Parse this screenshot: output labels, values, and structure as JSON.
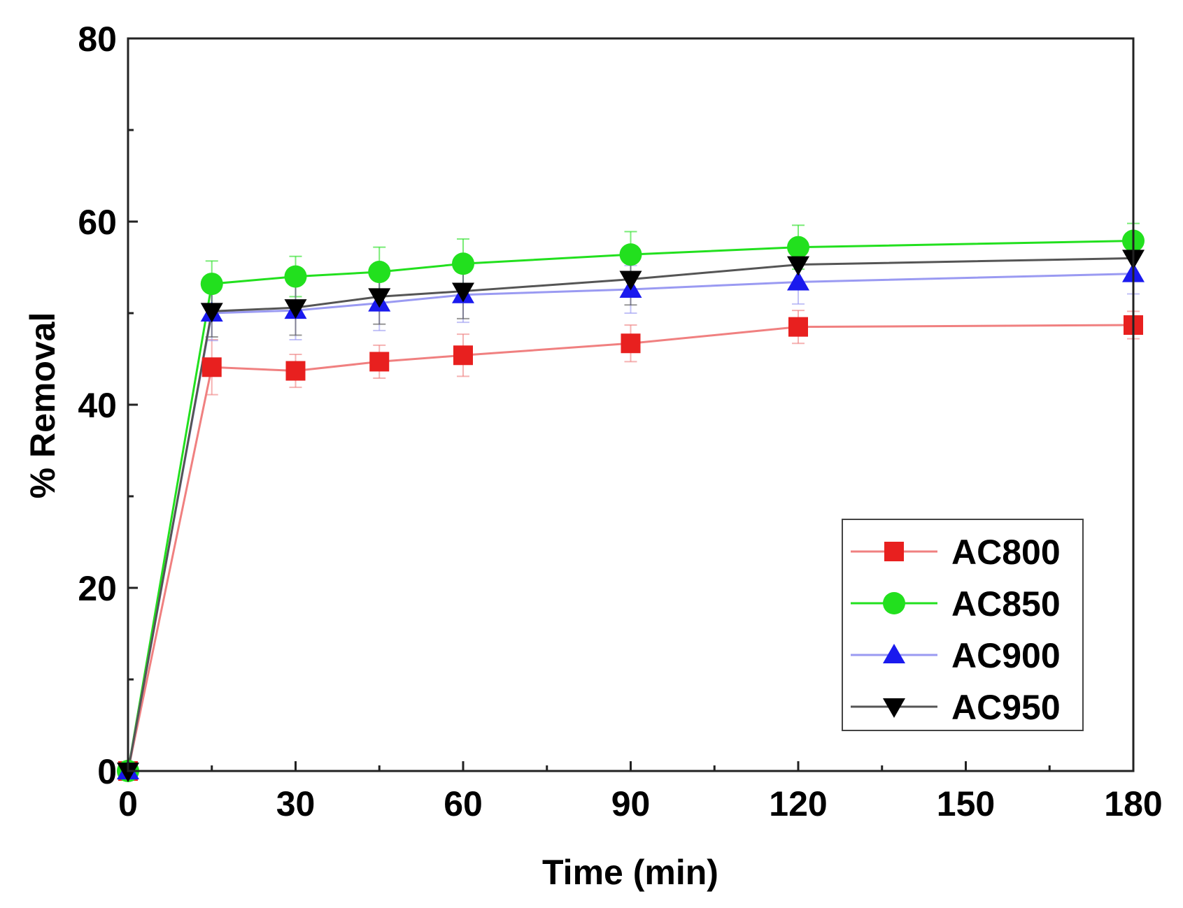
{
  "chart_data": {
    "type": "line",
    "title": "",
    "xlabel": "Time (min)",
    "ylabel": "% Removal",
    "xlim": [
      0,
      180
    ],
    "ylim": [
      0,
      80
    ],
    "x_ticks": [
      0,
      30,
      60,
      90,
      120,
      150,
      180
    ],
    "y_ticks": [
      0,
      20,
      40,
      60,
      80
    ],
    "x": [
      0,
      15,
      30,
      45,
      60,
      90,
      120,
      180
    ],
    "legend_position": "bottom-right",
    "grid": false,
    "series": [
      {
        "name": "AC800",
        "color": "#e8201f",
        "line_color": "#f08080",
        "marker": "square",
        "values": [
          0,
          44.1,
          43.7,
          44.7,
          45.4,
          46.7,
          48.5,
          48.7
        ],
        "errors": [
          0,
          3.0,
          1.8,
          1.8,
          2.3,
          2.0,
          1.8,
          1.5
        ]
      },
      {
        "name": "AC850",
        "color": "#22e01e",
        "line_color": "#22e01e",
        "marker": "circle",
        "values": [
          0,
          53.2,
          54.0,
          54.5,
          55.4,
          56.4,
          57.2,
          57.9
        ],
        "errors": [
          0,
          2.5,
          2.2,
          2.7,
          2.7,
          2.5,
          2.4,
          1.9
        ]
      },
      {
        "name": "AC900",
        "color": "#1a1aee",
        "line_color": "#9a9af2",
        "marker": "triangle-up",
        "values": [
          0,
          50.0,
          50.3,
          51.1,
          52.0,
          52.6,
          53.4,
          54.3
        ],
        "errors": [
          0,
          3.0,
          3.2,
          3.0,
          3.0,
          2.6,
          2.4,
          2.2
        ]
      },
      {
        "name": "AC950",
        "color": "#000000",
        "line_color": "#555555",
        "marker": "triangle-down",
        "values": [
          0,
          50.2,
          50.6,
          51.8,
          52.4,
          53.7,
          55.3,
          56.0
        ],
        "errors": [
          0,
          2.8,
          3.0,
          3.0,
          3.0,
          2.8,
          2.5,
          2.2
        ]
      }
    ]
  }
}
